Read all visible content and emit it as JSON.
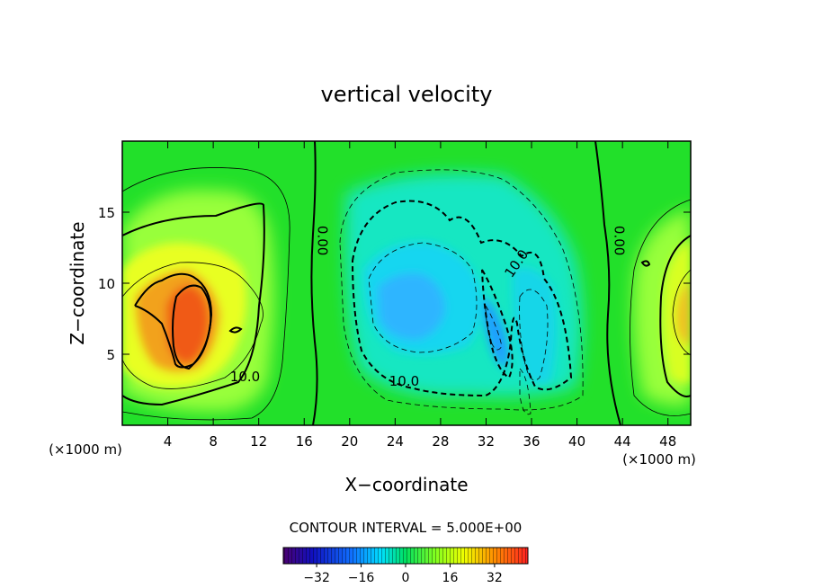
{
  "chart_data": {
    "type": "heatmap",
    "title": "vertical velocity",
    "xlabel": "X−coordinate",
    "ylabel": "Z−coordinate",
    "x_unit": "(×1000 m)",
    "x_unit_right": "(×1000 m)",
    "xlim": [
      0,
      50
    ],
    "ylim": [
      0,
      20
    ],
    "x_ticks": [
      4,
      8,
      12,
      16,
      20,
      24,
      28,
      32,
      36,
      40,
      44,
      48
    ],
    "y_ticks": [
      5,
      10,
      15
    ],
    "contour_interval_label": "CONTOUR INTERVAL = 5.000E+00",
    "contour_labels": [
      {
        "text": "0.00",
        "x": 17.2,
        "y": 13.0
      },
      {
        "text": "0.00",
        "x": 43.3,
        "y": 13.0
      },
      {
        "text": "10.0",
        "x": 10.8,
        "y": 3.1
      },
      {
        "text": "10.0",
        "x": 24.8,
        "y": 2.8
      },
      {
        "text": "10.0",
        "x": 35.0,
        "y": 11.2
      }
    ],
    "features": [
      {
        "name": "updraft-left",
        "x": 6,
        "z": 7.5,
        "value": 32
      },
      {
        "name": "updraft-right",
        "x": 50,
        "z": 9,
        "value": 16
      },
      {
        "name": "downdraft-center",
        "x": 27,
        "z": 8.5,
        "value": -14
      },
      {
        "name": "downdraft-narrow",
        "x": 33,
        "z": 5.5,
        "value": -20
      }
    ],
    "colorbar": {
      "ticks": [
        -32,
        -16,
        0,
        16,
        32
      ],
      "range": [
        -44,
        44
      ]
    }
  }
}
